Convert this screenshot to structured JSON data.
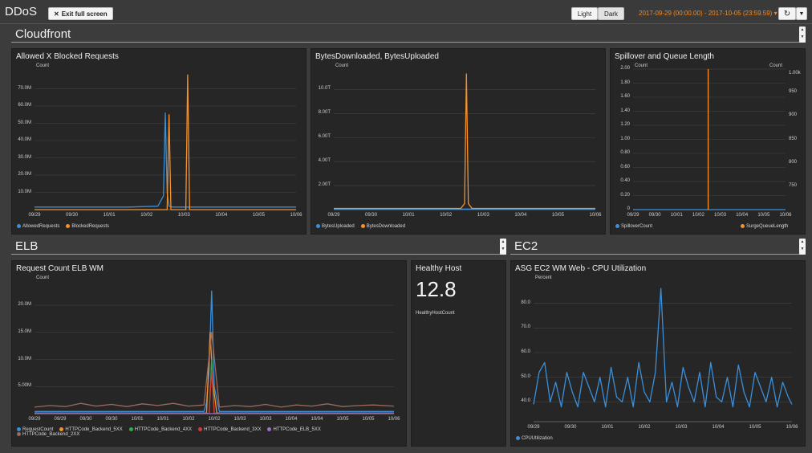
{
  "header": {
    "title": "DDoS",
    "exit_label": "Exit full screen",
    "light_label": "Light",
    "dark_label": "Dark",
    "time_range": "2017-09-29 (00:00.00) - 2017-10-05 (23:59.59)",
    "range_caret": "▾",
    "refresh_icon": "refresh-icon",
    "accent_color": "#f08a24"
  },
  "sections": {
    "cloudfront": "Cloudfront",
    "elb": "ELB",
    "ec2": "EC2"
  },
  "colors": {
    "blue": "#3b8fd9",
    "orange": "#f5922c",
    "green": "#36a94a",
    "red": "#d63a3a",
    "purple": "#9b70c8",
    "brown": "#9a6a5a",
    "grid": "#444444"
  },
  "panels": {
    "requests": {
      "title": "Allowed X Blocked Requests",
      "unit": "Count",
      "yticks": [
        "70.0M",
        "60.0M",
        "50.0M",
        "40.0M",
        "30.0M",
        "20.0M",
        "10.0M"
      ],
      "xticks": [
        "09/29",
        "09/30",
        "10/01",
        "10/02",
        "10/03",
        "10/04",
        "10/05",
        "10/06"
      ],
      "legend": [
        {
          "name": "AllowedRequests",
          "color": "#3b8fd9"
        },
        {
          "name": "BlockedRequests",
          "color": "#f5922c"
        }
      ]
    },
    "bytes": {
      "title": "BytesDownloaded, BytesUploaded",
      "unit": "Count",
      "yticks": [
        "10.0T",
        "8.00T",
        "6.00T",
        "4.00T",
        "2.00T"
      ],
      "xticks": [
        "09/29",
        "09/30",
        "10/01",
        "10/02",
        "10/03",
        "10/04",
        "10/05",
        "10/06"
      ],
      "legend": [
        {
          "name": "BytesUploaded",
          "color": "#3b8fd9"
        },
        {
          "name": "BytesDownloaded",
          "color": "#f5922c"
        }
      ]
    },
    "spillover": {
      "title": "Spillover and Queue Length",
      "unit_left": "Count",
      "unit_right": "Count",
      "yticks_left": [
        "2.00",
        "1.80",
        "1.60",
        "1.40",
        "1.20",
        "1.00",
        "0.80",
        "0.60",
        "0.40",
        "0.20",
        "0"
      ],
      "yticks_right": [
        "1.00k",
        "950",
        "900",
        "850",
        "800",
        "750"
      ],
      "xticks": [
        "09/29",
        "09/30",
        "10/01",
        "10/02",
        "10/03",
        "10/04",
        "10/05",
        "10/06"
      ],
      "legend_left": {
        "name": "SpilloverCount",
        "color": "#3b8fd9"
      },
      "legend_right": {
        "name": "SurgeQueueLength",
        "color": "#f5922c"
      }
    },
    "elb": {
      "title": "Request Count ELB WM",
      "unit": "Count",
      "yticks": [
        "20.0M",
        "15.0M",
        "10.0M",
        "5.00M"
      ],
      "xticks": [
        "09/29",
        "09/29",
        "09/30",
        "09/30",
        "10/01",
        "10/01",
        "10/02",
        "10/02",
        "10/03",
        "10/03",
        "10/04",
        "10/04",
        "10/05",
        "10/05",
        "10/06"
      ],
      "legend": [
        {
          "name": "RequestCount",
          "color": "#3b8fd9"
        },
        {
          "name": "HTTPCode_Backend_5XX",
          "color": "#f5922c"
        },
        {
          "name": "HTTPCode_Backend_4XX",
          "color": "#36a94a"
        },
        {
          "name": "HTTPCode_Backend_3XX",
          "color": "#d63a3a"
        },
        {
          "name": "HTTPCode_ELB_5XX",
          "color": "#9b70c8"
        },
        {
          "name": "HTTPCode_Backend_2XX",
          "color": "#9a6a5a"
        }
      ]
    },
    "healthy": {
      "title": "Healthy Host",
      "value": "12.8",
      "label": "HealthyHostCount"
    },
    "cpu": {
      "title": "ASG EC2 WM Web - CPU Utilization",
      "unit": "Percent",
      "yticks": [
        "80.0",
        "70.0",
        "60.0",
        "50.0",
        "40.0"
      ],
      "xticks": [
        "09/29",
        "09/30",
        "10/01",
        "10/02",
        "10/03",
        "10/04",
        "10/05",
        "10/06"
      ],
      "legend": [
        {
          "name": "CPUUtilization",
          "color": "#3b8fd9"
        }
      ]
    }
  },
  "chart_data": [
    {
      "type": "line",
      "title": "Allowed X Blocked Requests",
      "ylabel": "Count",
      "ylim": [
        0,
        80000000
      ],
      "x_range": [
        "09/29",
        "10/06"
      ],
      "series": [
        {
          "name": "AllowedRequests",
          "x": [
            0,
            2.5,
            3.3,
            3.45,
            3.5,
            3.55,
            3.6,
            3.7,
            4.2,
            7.0
          ],
          "y": [
            1500000,
            1500000,
            2000000,
            8000000,
            56000000,
            10000000,
            2000000,
            1500000,
            1500000,
            1500000
          ]
        },
        {
          "name": "BlockedRequests",
          "x": [
            0,
            3.5,
            3.55,
            3.6,
            3.65,
            3.7,
            4.0,
            4.05,
            4.1,
            4.15,
            4.2,
            7.0
          ],
          "y": [
            0,
            0,
            0,
            55000000,
            0,
            0,
            0,
            0,
            78000000,
            0,
            0,
            0
          ]
        }
      ]
    },
    {
      "type": "line",
      "title": "BytesDownloaded, BytesUploaded",
      "ylabel": "Count",
      "ylim": [
        0,
        11500000000000
      ],
      "x_range": [
        "09/29",
        "10/06"
      ],
      "series": [
        {
          "name": "BytesUploaded",
          "x": [
            0,
            7.0
          ],
          "y": [
            50000000000,
            50000000000
          ]
        },
        {
          "name": "BytesDownloaded",
          "x": [
            0,
            3.4,
            3.5,
            3.55,
            3.6,
            3.7,
            7.0
          ],
          "y": [
            100000000000,
            100000000000,
            500000000000,
            11300000000000,
            500000000000,
            100000000000,
            100000000000
          ]
        }
      ]
    },
    {
      "type": "line",
      "title": "Spillover and Queue Length",
      "ylabel": "Count",
      "ylim": [
        0,
        2
      ],
      "ylim_right": [
        700,
        1000
      ],
      "x_range": [
        "09/29",
        "10/06"
      ],
      "series": [
        {
          "name": "SpilloverCount",
          "x": [
            0,
            7.0
          ],
          "y": [
            0,
            0
          ]
        },
        {
          "name": "SurgeQueueLength",
          "x": [
            3.45,
            3.45
          ],
          "y": [
            0,
            2
          ]
        }
      ]
    },
    {
      "type": "line",
      "title": "Request Count ELB WM",
      "ylabel": "Count",
      "ylim": [
        0,
        24000000
      ],
      "x_range": [
        "09/29",
        "10/06"
      ],
      "series": [
        {
          "name": "RequestCount",
          "x": [
            0,
            3.3,
            3.35,
            3.4,
            3.45,
            3.5,
            3.6,
            7.0
          ],
          "y": [
            400000,
            400000,
            2000000,
            8000000,
            22600000,
            5000000,
            400000,
            400000
          ]
        },
        {
          "name": "HTTPCode_Backend_5XX",
          "x": [
            0,
            3.35,
            3.42,
            3.47,
            3.55,
            7.0
          ],
          "y": [
            100000,
            100000,
            15000000,
            6000000,
            100000,
            100000
          ]
        },
        {
          "name": "HTTPCode_Backend_4XX",
          "x": [
            0,
            3.4,
            3.45,
            3.5,
            7.0
          ],
          "y": [
            50000,
            50000,
            10000000,
            50000,
            50000
          ]
        },
        {
          "name": "HTTPCode_Backend_3XX",
          "x": [
            0,
            3.4,
            3.45,
            3.5,
            7.0
          ],
          "y": [
            20000,
            20000,
            8000000,
            20000,
            20000
          ]
        },
        {
          "name": "HTTPCode_ELB_5XX",
          "x": [
            0,
            7.0
          ],
          "y": [
            0,
            0
          ]
        },
        {
          "name": "HTTPCode_Backend_2XX",
          "x": [
            0,
            0.3,
            0.6,
            0.9,
            1.2,
            1.5,
            1.8,
            2.1,
            2.4,
            2.7,
            3.0,
            3.3,
            3.45,
            3.6,
            3.9,
            4.2,
            4.5,
            4.8,
            5.1,
            5.4,
            5.7,
            6.0,
            6.3,
            6.6,
            7.0
          ],
          "y": [
            1200000,
            1500000,
            1300000,
            1900000,
            1400000,
            1700000,
            1300000,
            1800000,
            1500000,
            1900000,
            1400000,
            1600000,
            15000000,
            1200000,
            1500000,
            1300000,
            1700000,
            1200000,
            1600000,
            1400000,
            1800000,
            1300000,
            1500000,
            1600000,
            1400000
          ]
        }
      ]
    },
    {
      "type": "line",
      "title": "ASG EC2 WM Web - CPU Utilization",
      "ylabel": "Percent",
      "ylim": [
        32,
        88
      ],
      "x_range": [
        "09/29",
        "10/06"
      ],
      "series": [
        {
          "name": "CPUUtilization",
          "x": [
            0,
            0.15,
            0.3,
            0.45,
            0.6,
            0.75,
            0.9,
            1.05,
            1.2,
            1.35,
            1.5,
            1.65,
            1.8,
            1.95,
            2.1,
            2.25,
            2.4,
            2.55,
            2.7,
            2.85,
            3.0,
            3.15,
            3.3,
            3.45,
            3.6,
            3.75,
            3.9,
            4.05,
            4.2,
            4.35,
            4.5,
            4.65,
            4.8,
            4.95,
            5.1,
            5.25,
            5.4,
            5.55,
            5.7,
            5.85,
            6.0,
            6.15,
            6.3,
            6.45,
            6.6,
            6.75,
            6.9,
            7.0
          ],
          "y": [
            39,
            52,
            56,
            40,
            48,
            38,
            52,
            44,
            38,
            52,
            46,
            40,
            50,
            38,
            54,
            42,
            40,
            50,
            38,
            56,
            44,
            40,
            52,
            86,
            40,
            48,
            38,
            54,
            46,
            40,
            52,
            38,
            56,
            42,
            40,
            50,
            38,
            55,
            44,
            38,
            52,
            46,
            40,
            50,
            38,
            48,
            42,
            39
          ]
        }
      ]
    }
  ]
}
